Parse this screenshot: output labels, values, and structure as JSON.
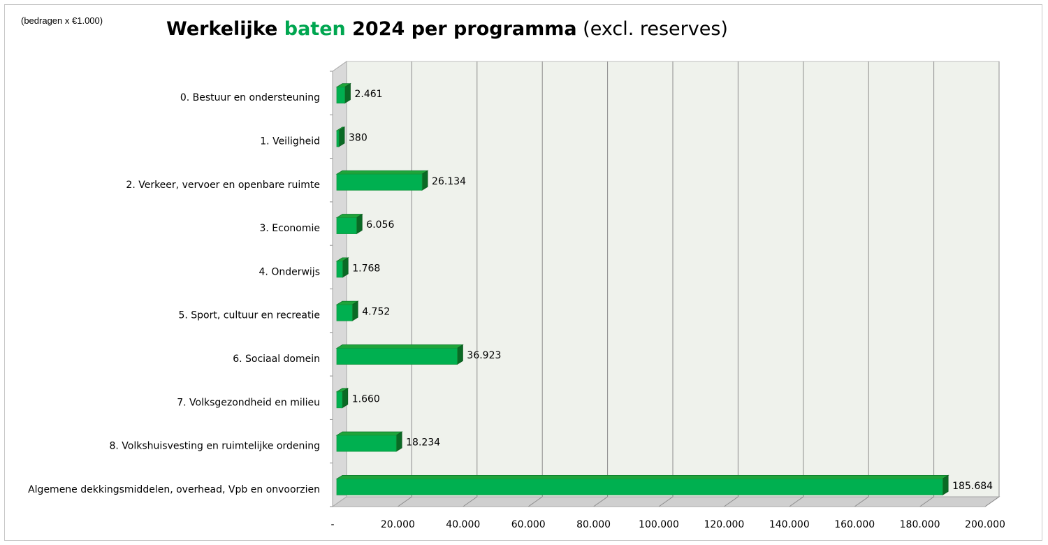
{
  "note": "(bedragen x €1.000)",
  "title": {
    "part1": "Werkelijke ",
    "part2": "baten",
    "part3": " 2024 per programma",
    "part4": " (excl. reserves)"
  },
  "colors": {
    "bar_front": "#00b050",
    "bar_top": "#1fa43a",
    "bar_side": "#0a6a25",
    "wall": "#eff2ec",
    "floor": "#cfcfcf",
    "grid": "#8c8c8c",
    "highlight": "#00a650"
  },
  "chart_data": {
    "type": "bar",
    "orientation": "horizontal",
    "three_d": true,
    "title": "Werkelijke baten 2024 per programma (excl. reserves)",
    "units_note": "(bedragen x €1.000)",
    "categories": [
      "0. Bestuur en ondersteuning",
      "1. Veiligheid",
      "2. Verkeer, vervoer en openbare ruimte",
      "3. Economie",
      "4. Onderwijs",
      "5. Sport, cultuur en recreatie",
      "6. Sociaal domein",
      "7. Volksgezondheid en milieu",
      "8. Volkshuisvesting en ruimtelijke ordening",
      "Algemene dekkingsmiddelen, overhead, Vpb en onvoorzien"
    ],
    "values": [
      2461,
      380,
      26134,
      6056,
      1768,
      4752,
      36923,
      1660,
      18234,
      185684
    ],
    "value_labels": [
      "2.461",
      "380",
      "26.134",
      "6.056",
      "1.768",
      "4.752",
      "36.923",
      "1.660",
      "18.234",
      "185.684"
    ],
    "xlim": [
      0,
      200000
    ],
    "x_ticks": [
      0,
      20000,
      40000,
      60000,
      80000,
      100000,
      120000,
      140000,
      160000,
      180000,
      200000
    ],
    "x_tick_labels": [
      "-",
      "20.000",
      "40.000",
      "60.000",
      "80.000",
      "100.000",
      "120.000",
      "140.000",
      "160.000",
      "180.000",
      "200.000"
    ],
    "grid": true,
    "legend": "none"
  }
}
